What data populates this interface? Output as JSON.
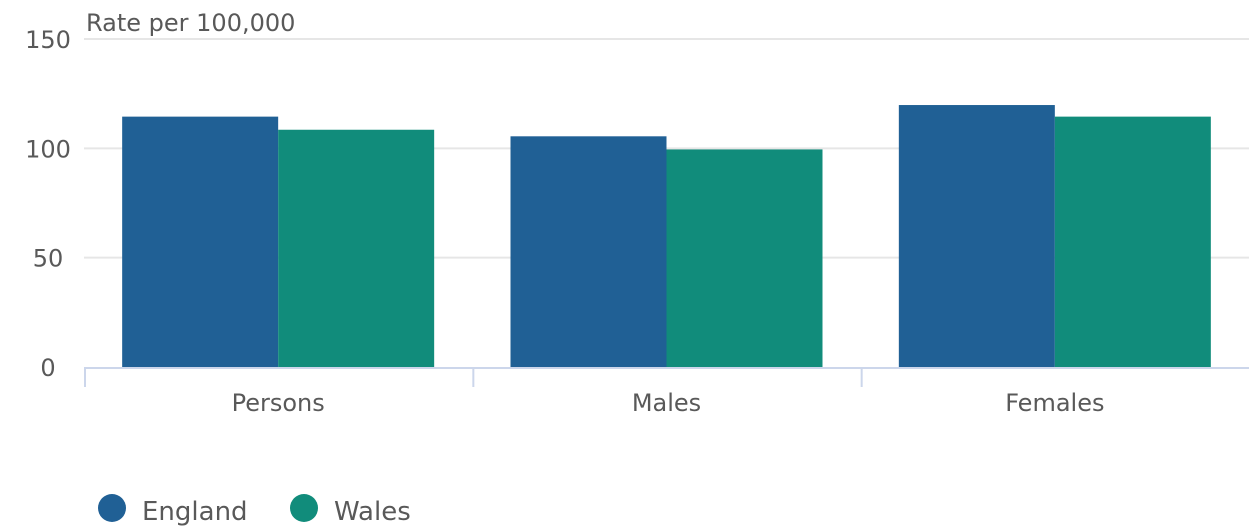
{
  "chart_data": {
    "type": "bar",
    "title": "",
    "xlabel": "",
    "ylabel": "Rate per 100,000",
    "categories": [
      "Persons",
      "Males",
      "Females"
    ],
    "series": [
      {
        "name": "England",
        "color": "#206095",
        "values": [
          114.5,
          105.5,
          119.8
        ]
      },
      {
        "name": "Wales",
        "color": "#118C7B",
        "values": [
          108.5,
          99.5,
          114.5
        ]
      }
    ],
    "ylim": [
      0,
      150
    ],
    "yticks": [
      "0",
      "50",
      "100",
      "150"
    ],
    "grid": true,
    "legend_position": "bottom-left"
  }
}
